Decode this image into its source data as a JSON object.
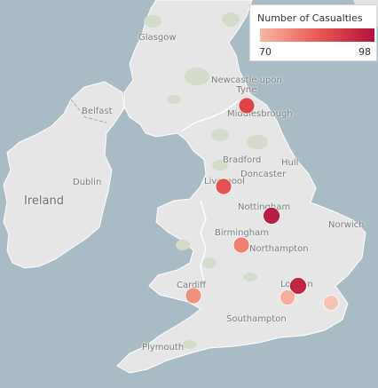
{
  "legend": {
    "title": "Number of Casualties",
    "min_label": "70",
    "max_label": "98",
    "color_min": "#f6b7a6",
    "color_mid": "#eb5a54",
    "color_max": "#b5123a"
  },
  "places": {
    "glasgow": "Glasgow",
    "newcastle": "Newcastle upon\nTyne",
    "middlesbrough": "Middlesbrough",
    "belfast": "Belfast",
    "bradford": "Bradford",
    "hull": "Hull",
    "doncaster": "Doncaster",
    "liverpool": "Liverpool",
    "dublin": "Dublin",
    "ireland": "Ireland",
    "nottingham": "Nottingham",
    "norwich": "Norwich",
    "birmingham": "Birmingham",
    "northampton": "Northampton",
    "cardiff": "Cardiff",
    "london": "London",
    "southampton": "Southampton",
    "plymouth": "Plymouth"
  },
  "markers": [
    {
      "name": "newcastle-marker",
      "color": "#e03a3e"
    },
    {
      "name": "liverpool-marker",
      "color": "#e04a48"
    },
    {
      "name": "nottingham-marker",
      "color": "#b5123a"
    },
    {
      "name": "birmingham-marker",
      "color": "#ef7a68"
    },
    {
      "name": "cardiff-marker",
      "color": "#f08a74"
    },
    {
      "name": "london-marker",
      "color": "#c21a3c"
    },
    {
      "name": "london-south-marker",
      "color": "#f6ab98"
    },
    {
      "name": "kent-marker",
      "color": "#f8c0b0"
    }
  ]
}
